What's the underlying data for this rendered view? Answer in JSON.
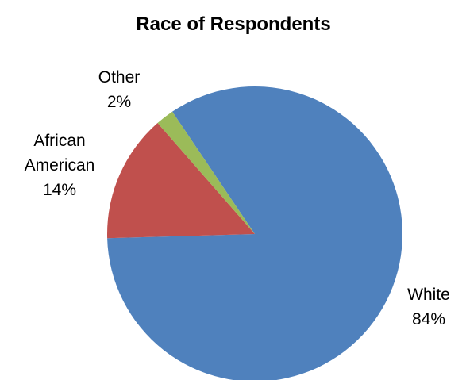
{
  "chart_data": {
    "type": "pie",
    "title": "Race of Respondents",
    "slices": [
      {
        "label": "White",
        "value": 84,
        "value_label": "84%",
        "color": "#4F81BD"
      },
      {
        "label": "African American",
        "value": 14,
        "value_label": "14%",
        "color": "#C0504D"
      },
      {
        "label": "Other",
        "value": 2,
        "value_label": "2%",
        "color": "#9BBB59"
      }
    ],
    "legend": "none"
  }
}
